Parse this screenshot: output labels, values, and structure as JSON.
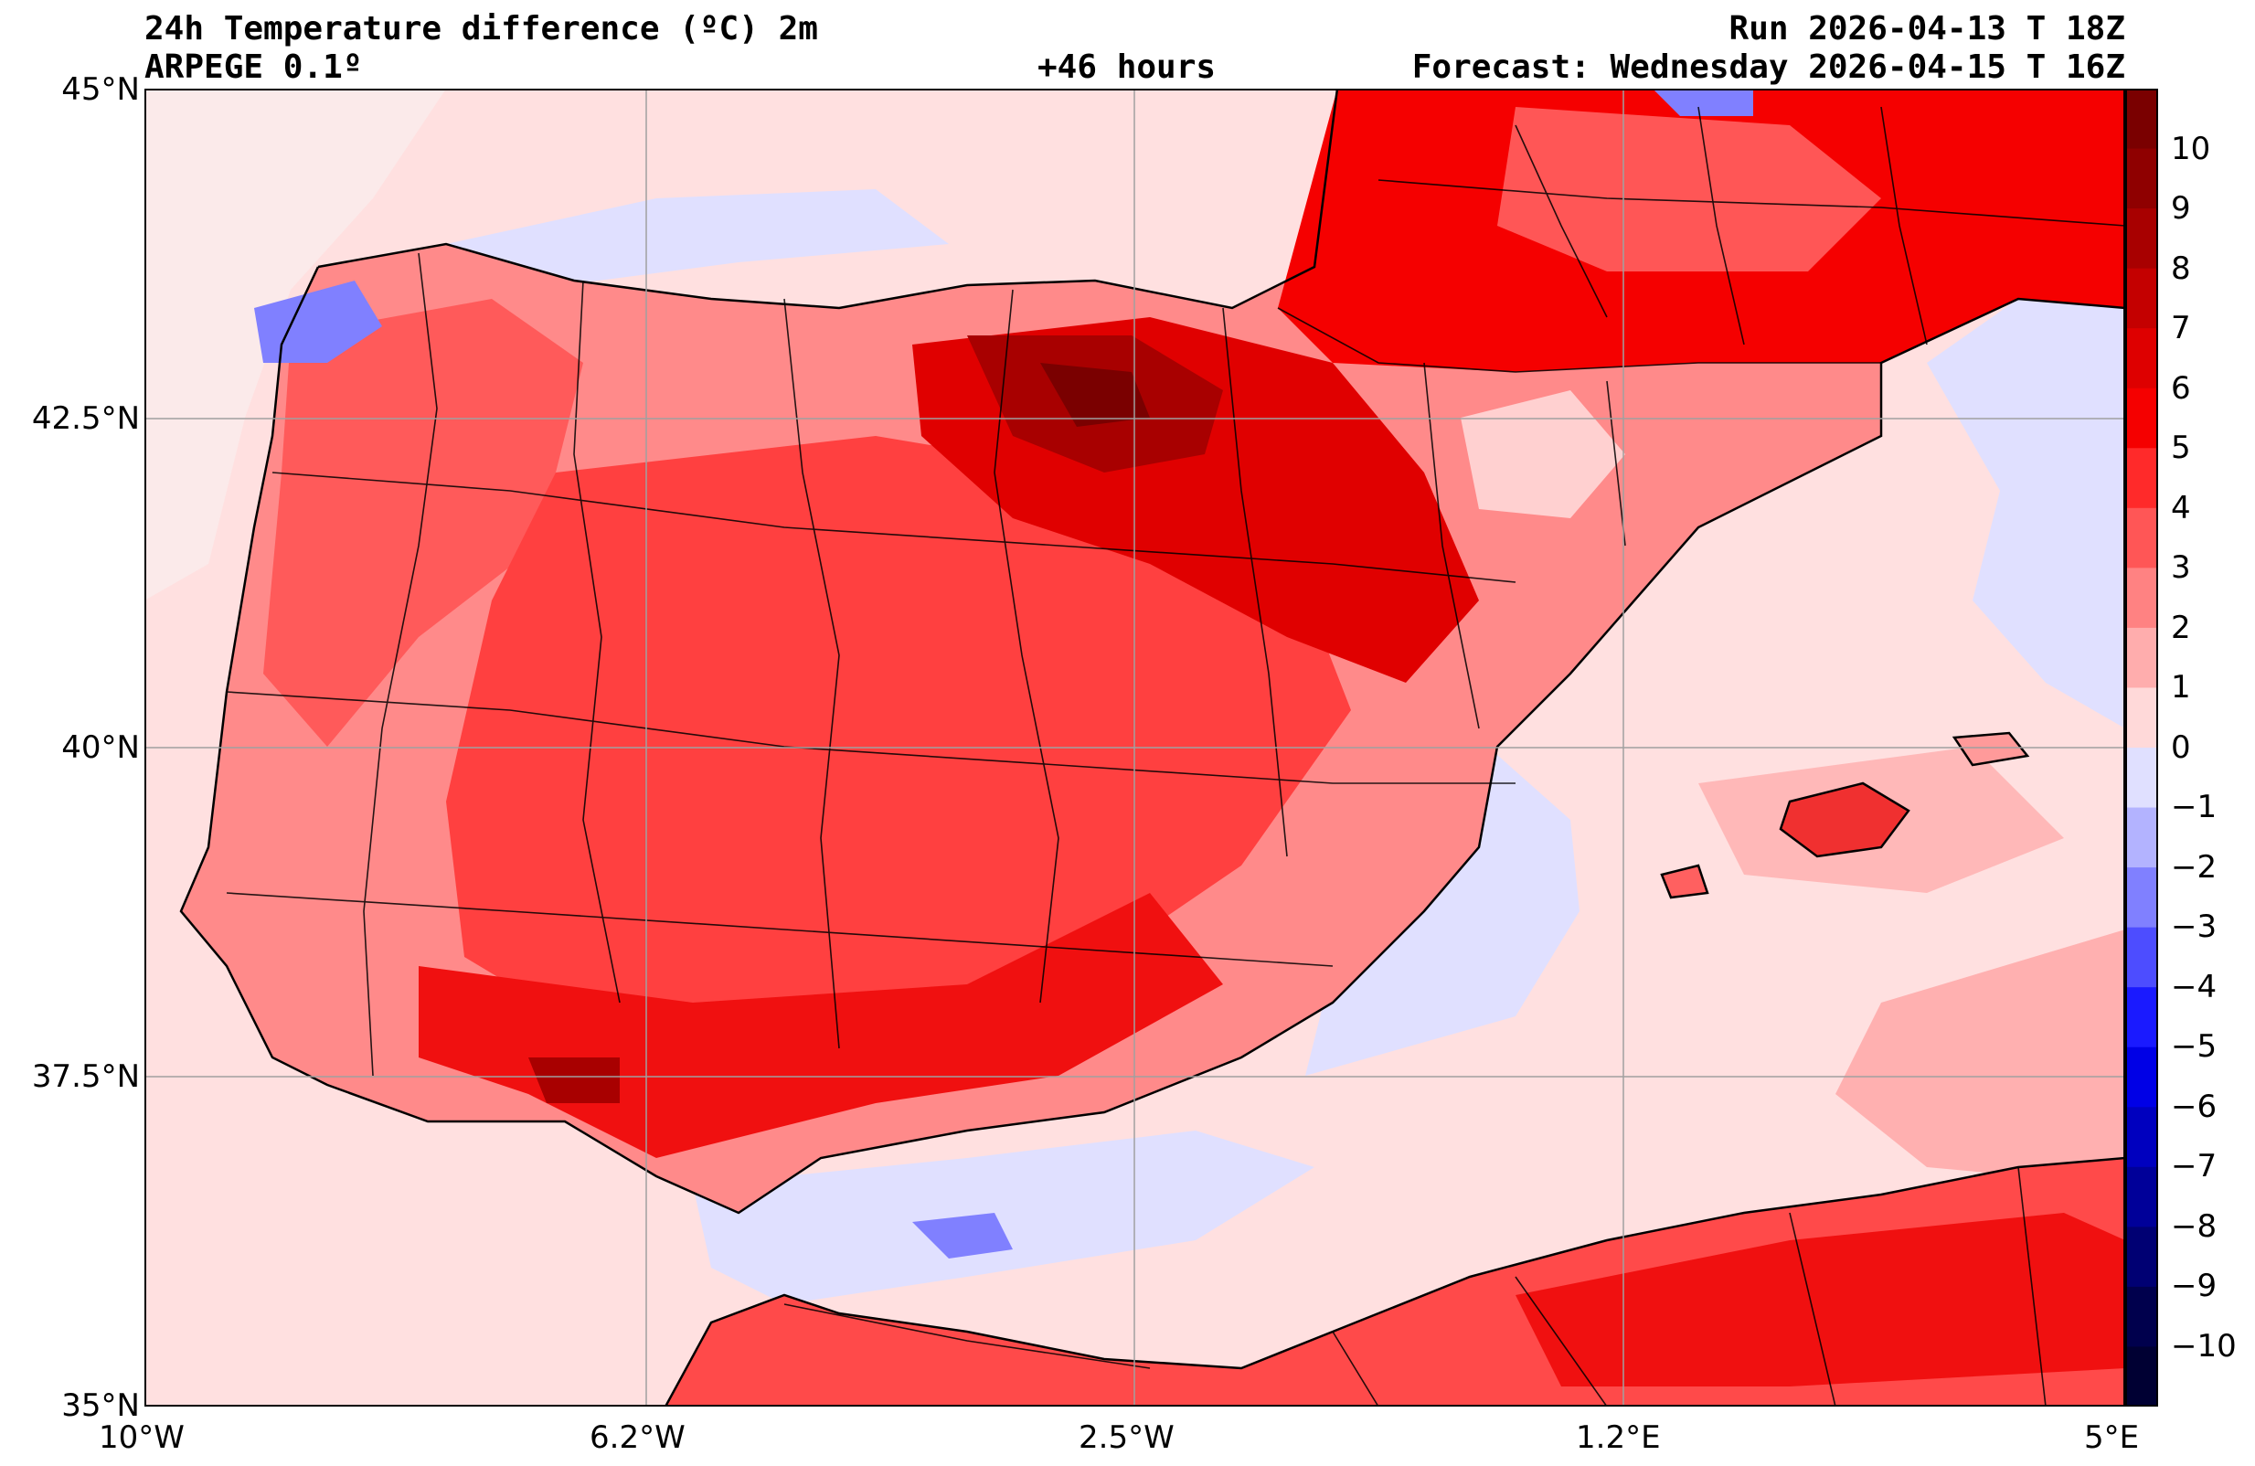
{
  "header": {
    "title": "24h Temperature difference (ºC) 2m",
    "model": "ARPEGE 0.1º",
    "lead": "+46 hours",
    "run": "Run 2026-04-13 T 18Z",
    "forecast": "Forecast: Wednesday 2026-04-15 T 16Z"
  },
  "axes": {
    "lat_labels": [
      "45°N",
      "42.5°N",
      "40°N",
      "37.5°N",
      "35°N"
    ],
    "lon_labels": [
      "10°W",
      "6.2°W",
      "2.5°W",
      "1.2°E",
      "5°E"
    ]
  },
  "colorbar": {
    "labels": [
      "10",
      "9",
      "8",
      "7",
      "6",
      "5",
      "4",
      "3",
      "2",
      "1",
      "0",
      "−1",
      "−2",
      "−3",
      "−4",
      "−5",
      "−6",
      "−7",
      "−8",
      "−9",
      "−10"
    ],
    "colors_top_to_bottom": [
      "#7a0000",
      "#8f0000",
      "#a80000",
      "#c40000",
      "#de0000",
      "#f50000",
      "#ff2a2a",
      "#ff5656",
      "#ff8282",
      "#ffadad",
      "#ffd9d9",
      "#e0e0ff",
      "#b3b3ff",
      "#8080ff",
      "#4d4dff",
      "#1a1aff",
      "#0000e6",
      "#0000bf",
      "#000099",
      "#000073",
      "#00004d",
      "#000033"
    ]
  },
  "colors": {
    "sea_light": "#ffe0e0",
    "sea_cool": "#e0e0ff",
    "land_warm": "#ff6060",
    "land_hot": "#e00000",
    "land_hottest": "#8f0000",
    "cold_spot": "#8080ff"
  }
}
